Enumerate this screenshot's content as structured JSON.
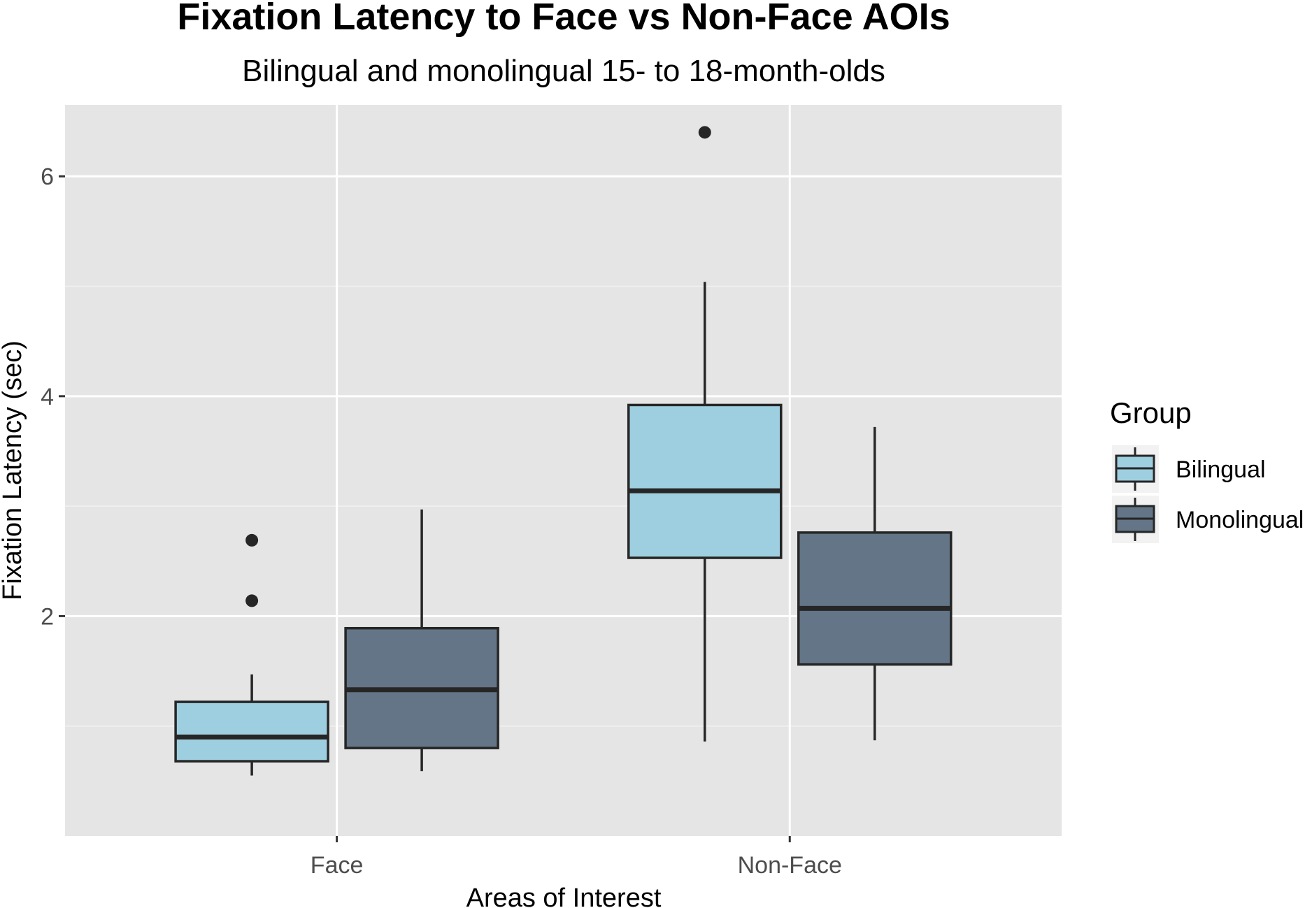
{
  "chart_data": {
    "type": "boxplot",
    "title": "Fixation Latency to Face vs Non-Face AOIs",
    "subtitle": "Bilingual and monolingual 15- to 18-month-olds",
    "xlabel": "Areas of Interest",
    "ylabel": "Fixation Latency (sec)",
    "categories": [
      "Face",
      "Non-Face"
    ],
    "ylim": [
      0.0,
      6.65
    ],
    "yticks": [
      2,
      4,
      6
    ],
    "grid": true,
    "legend": {
      "title": "Group",
      "position": "right"
    },
    "series": [
      {
        "name": "Bilingual",
        "color": "#9ecfe0",
        "boxes": [
          {
            "category": "Face",
            "whisker_low": 0.55,
            "q1": 0.68,
            "median": 0.9,
            "q3": 1.22,
            "whisker_high": 1.47,
            "outliers": [
              2.14,
              2.69
            ]
          },
          {
            "category": "Non-Face",
            "whisker_low": 0.86,
            "q1": 2.53,
            "median": 3.14,
            "q3": 3.92,
            "whisker_high": 5.04,
            "outliers": [
              6.4
            ]
          }
        ]
      },
      {
        "name": "Monolingual",
        "color": "#637587",
        "boxes": [
          {
            "category": "Face",
            "whisker_low": 0.59,
            "q1": 0.8,
            "median": 1.33,
            "q3": 1.89,
            "whisker_high": 2.97,
            "outliers": []
          },
          {
            "category": "Non-Face",
            "whisker_low": 0.87,
            "q1": 1.56,
            "median": 2.07,
            "q3": 2.76,
            "whisker_high": 3.72,
            "outliers": []
          }
        ]
      }
    ]
  }
}
